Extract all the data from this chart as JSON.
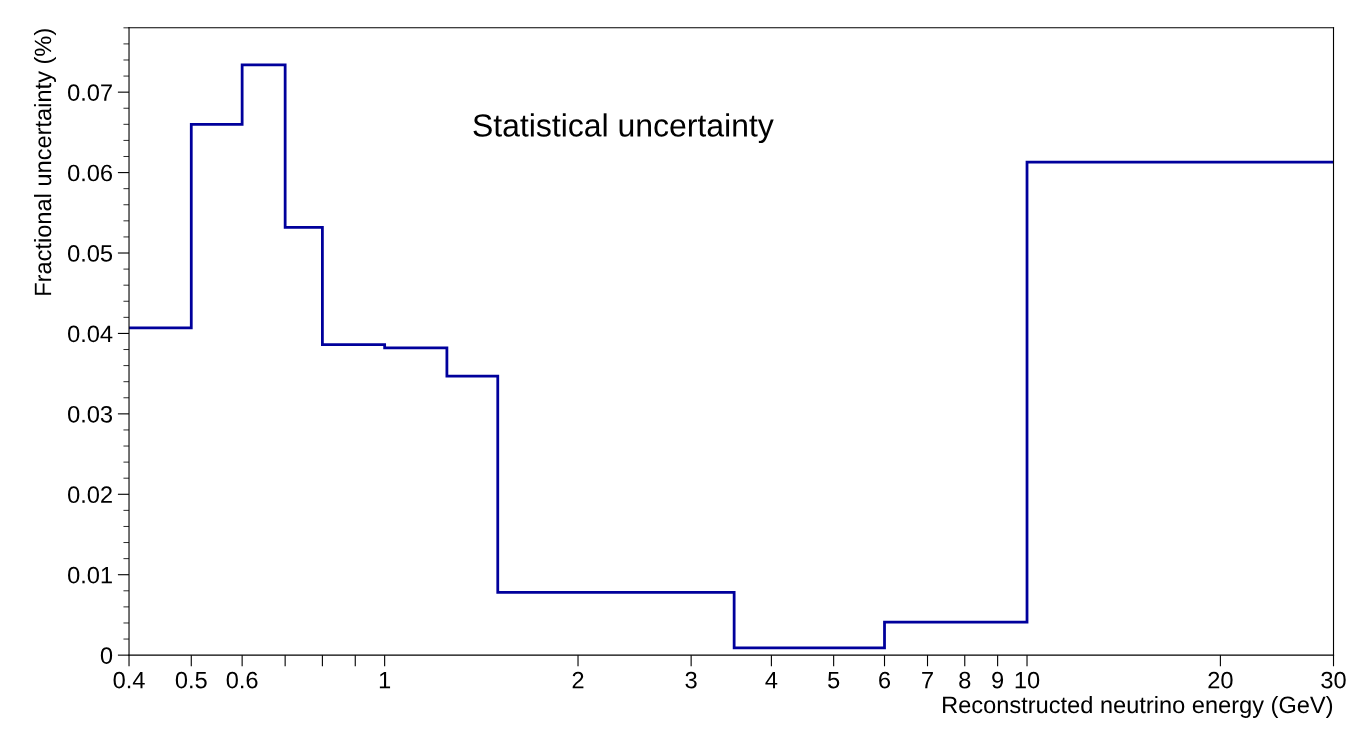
{
  "chart_data": {
    "type": "histogram",
    "title": "Statistical uncertainty",
    "xlabel": "Reconstructed neutrino energy (GeV)",
    "ylabel": "Fractional uncertainty (%)",
    "bins": [
      0.4,
      0.5,
      0.6,
      0.7,
      0.8,
      1.0,
      1.25,
      1.5,
      3.5,
      6,
      10,
      30
    ],
    "values": [
      0.0407,
      0.066,
      0.0734,
      0.0532,
      0.0386,
      0.0382,
      0.0347,
      0.0078,
      0.0009,
      0.0041,
      0.0613
    ],
    "color": "#00009c",
    "log": "x",
    "xlim": [
      0.4,
      30
    ],
    "ylim": [
      0,
      0.078
    ],
    "xticks": [
      0.4,
      0.5,
      0.6,
      {
        "value": 0.7,
        "label": null
      },
      {
        "value": 0.8,
        "label": null
      },
      {
        "value": 0.9,
        "label": null
      },
      1,
      2,
      3,
      4,
      5,
      6,
      7,
      8,
      9,
      10,
      20,
      30
    ],
    "yticks": [
      0,
      0.01,
      0.02,
      0.03,
      0.04,
      0.05,
      0.06,
      0.07
    ],
    "grid": false,
    "legend": false
  }
}
